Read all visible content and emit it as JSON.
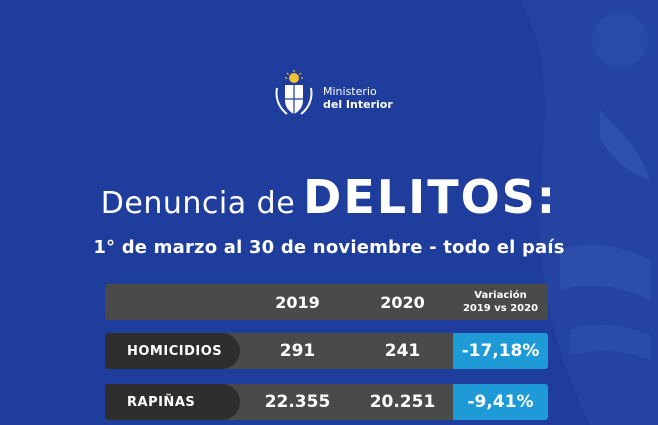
{
  "brand": {
    "line1": "Ministerio",
    "line2": "del Interior"
  },
  "title": {
    "light": "Denuncia de",
    "bold": "DELITOS:"
  },
  "subtitle": "1° de marzo al 30 de noviembre - todo el país",
  "table": {
    "headers": {
      "year1": "2019",
      "year2": "2020",
      "variation_line1": "Variación",
      "variation_line2": "2019 vs 2020"
    },
    "rows": [
      {
        "label": "HOMICIDIOS",
        "v2019": "291",
        "v2020": "241",
        "variation": "-17,18%"
      },
      {
        "label": "RAPIÑAS",
        "v2019": "22.355",
        "v2020": "20.251",
        "variation": "-9,41%"
      }
    ]
  },
  "colors": {
    "background": "#1f3d9c",
    "row_bg": "#4a4a4a",
    "label_bg": "#2e2e2e",
    "variation_bg": "#1e9ad6"
  }
}
